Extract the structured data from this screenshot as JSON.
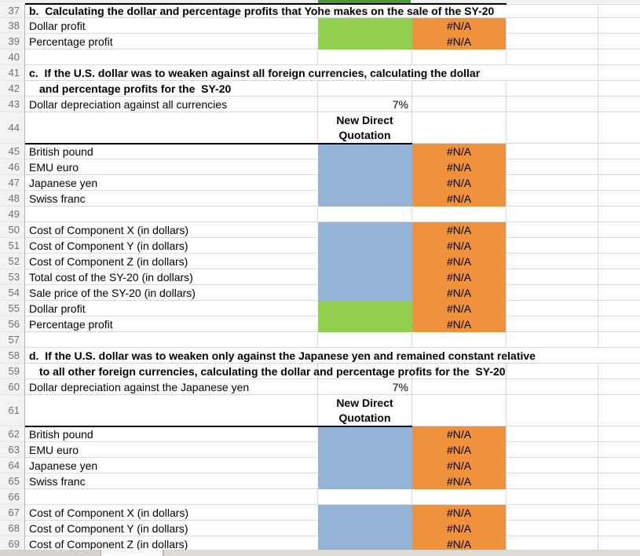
{
  "app": {
    "description": "Excel worksheet viewport, rows 37-69, currency profit calculations for the SY-20"
  },
  "colors": {
    "green": "#92D050",
    "blue": "#95B3D7",
    "orange": "#F0913C",
    "row36_edge_green": "#4A9B36"
  },
  "values": {
    "error": "#N/A",
    "depreciation": "7%",
    "quotation_header": "New Direct Quotation"
  },
  "rows": [
    {
      "n": "37",
      "at": "heading",
      "a": "b.  Calculating the dollar and percentage profits that Yohe makes on the sale of the SY-20"
    },
    {
      "n": "38",
      "at": "label",
      "a": "Dollar profit",
      "b": "green",
      "c": "na"
    },
    {
      "n": "39",
      "at": "label",
      "a": "Percentage profit",
      "b": "green",
      "c": "na"
    },
    {
      "n": "40"
    },
    {
      "n": "41",
      "at": "heading",
      "a": "c.  If the U.S. dollar was to weaken against all foreign currencies, calculating the dollar"
    },
    {
      "n": "42",
      "at": "indent",
      "a": "and percentage profits for the  SY-20"
    },
    {
      "n": "43",
      "at": "label",
      "a": "Dollar depreciation against all currencies",
      "b": "pct"
    },
    {
      "n": "44",
      "b": "header",
      "thick": true
    },
    {
      "n": "45",
      "at": "label",
      "a": "British pound",
      "b": "blue",
      "c": "na"
    },
    {
      "n": "46",
      "at": "label",
      "a": "EMU euro",
      "b": "blue",
      "c": "na"
    },
    {
      "n": "47",
      "at": "label",
      "a": "Japanese yen",
      "b": "blue",
      "c": "na"
    },
    {
      "n": "48",
      "at": "label",
      "a": "Swiss franc",
      "b": "blue",
      "c": "na"
    },
    {
      "n": "49"
    },
    {
      "n": "50",
      "at": "label",
      "a": "Cost of Component X (in dollars)",
      "b": "blue",
      "c": "na"
    },
    {
      "n": "51",
      "at": "label",
      "a": "Cost of Component Y (in dollars)",
      "b": "blue",
      "c": "na"
    },
    {
      "n": "52",
      "at": "label",
      "a": "Cost of Component Z (in dollars)",
      "b": "blue",
      "c": "na"
    },
    {
      "n": "53",
      "at": "label",
      "a": "Total cost of the SY-20 (in dollars)",
      "b": "blue",
      "c": "na"
    },
    {
      "n": "54",
      "at": "label",
      "a": "Sale price of the SY-20 (in dollars)",
      "b": "blue",
      "c": "na"
    },
    {
      "n": "55",
      "at": "label",
      "a": "Dollar profit",
      "b": "green",
      "c": "na"
    },
    {
      "n": "56",
      "at": "label",
      "a": "Percentage profit",
      "b": "green",
      "c": "na"
    },
    {
      "n": "57"
    },
    {
      "n": "58",
      "at": "heading",
      "a": "d.  If the U.S. dollar was to weaken only against the Japanese yen and remained constant relative",
      "nodr": true
    },
    {
      "n": "59",
      "at": "indent",
      "a": "to all other foreign currencies, calculating the dollar and percentage profits for the  SY-20"
    },
    {
      "n": "60",
      "at": "label",
      "a": "Dollar depreciation against the Japanese yen",
      "b": "pct"
    },
    {
      "n": "61",
      "b": "header",
      "thick": true
    },
    {
      "n": "62",
      "at": "label",
      "a": "British pound",
      "b": "blue",
      "c": "na"
    },
    {
      "n": "63",
      "at": "label",
      "a": "EMU euro",
      "b": "blue",
      "c": "na"
    },
    {
      "n": "64",
      "at": "label",
      "a": "Japanese yen",
      "b": "blue",
      "c": "na"
    },
    {
      "n": "65",
      "at": "label",
      "a": "Swiss franc",
      "b": "blue",
      "c": "na"
    },
    {
      "n": "66"
    },
    {
      "n": "67",
      "at": "label",
      "a": "Cost of Component X (in dollars)",
      "b": "blue",
      "c": "na"
    },
    {
      "n": "68",
      "at": "label",
      "a": "Cost of Component Y (in dollars)",
      "b": "blue",
      "c": "na"
    },
    {
      "n": "69",
      "at": "label",
      "a": "Cost of Component Z (in dollars)",
      "b": "blue",
      "c": "na"
    }
  ]
}
